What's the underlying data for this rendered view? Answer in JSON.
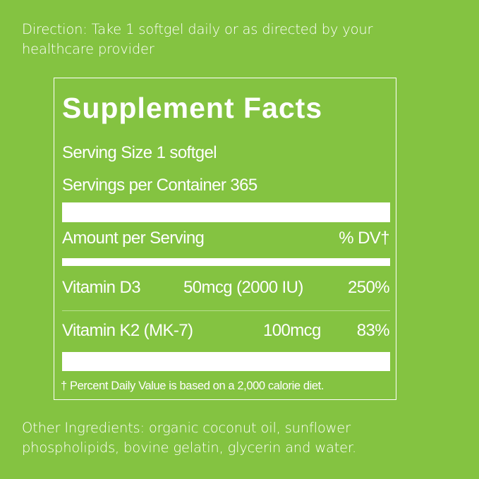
{
  "direction": {
    "line1": "Direction: Take 1 softgel daily or as directed by your",
    "line2": "healthcare provider"
  },
  "facts": {
    "title": "Supplement Facts",
    "serving_size": "Serving Size 1 softgel",
    "servings_per_container": "Servings per Container 365",
    "amount_header": "Amount per Serving",
    "dv_header": "% DV†",
    "rows": [
      {
        "name": "Vitamin D3",
        "amount": "50mcg (2000 IU)",
        "dv": "250%"
      },
      {
        "name": "Vitamin K2 (MK-7)",
        "amount": "100mcg",
        "dv": "83%"
      }
    ],
    "footnote": "† Percent Daily Value is based on a 2,000 calorie diet."
  },
  "other_ingredients": {
    "line1": "Other Ingredients: organic coconut oil, sunflower",
    "line2": "phospholipids, bovine gelatin, glycerin and water."
  },
  "colors": {
    "background": "#84c341",
    "text": "#ffffff"
  }
}
